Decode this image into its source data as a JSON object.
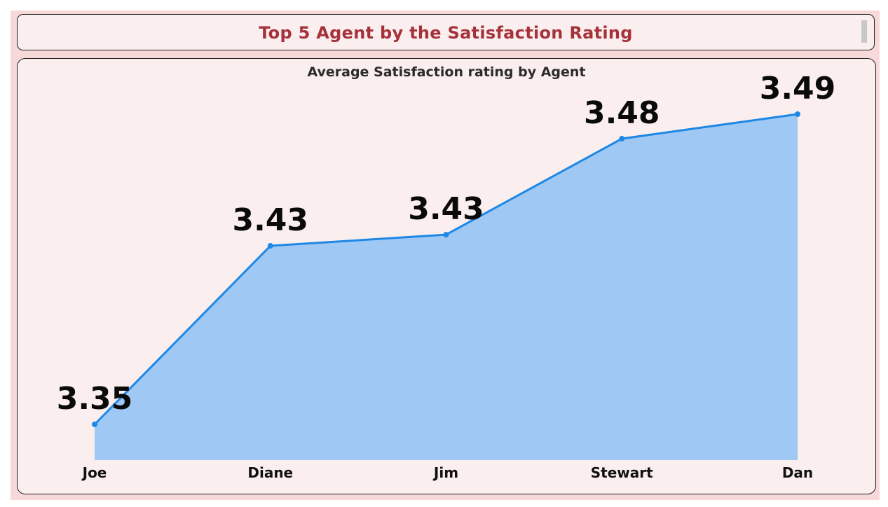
{
  "header": {
    "title": "Top 5 Agent by the Satisfaction Rating"
  },
  "colors": {
    "background": "#f8d9d9",
    "card": "#fbeeee",
    "title": "#a5323a",
    "line": "#1e88e5",
    "area": "#9fc8f4"
  },
  "chart_data": {
    "type": "area",
    "title": "Average Satisfaction rating by Agent",
    "xlabel": "",
    "ylabel": "",
    "categories": [
      "Joe",
      "Diane",
      "Jim",
      "Stewart",
      "Dan"
    ],
    "values": [
      3.35,
      3.43,
      3.435,
      3.478,
      3.489
    ],
    "labels": [
      "3.35",
      "3.43",
      "3.43",
      "3.48",
      "3.49"
    ],
    "legend": "none",
    "grid": false
  }
}
